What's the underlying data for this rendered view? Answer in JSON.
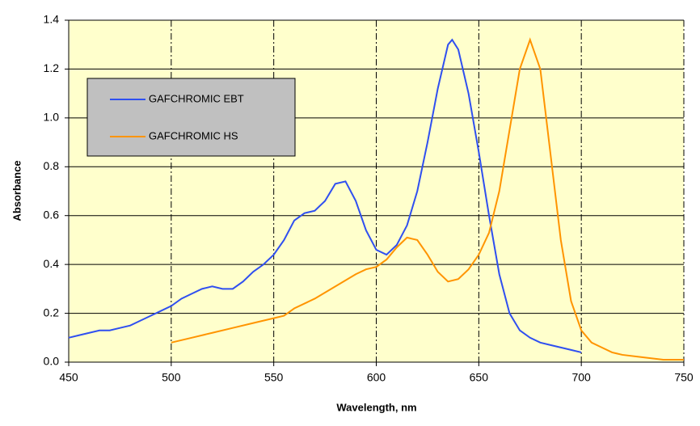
{
  "chart_data": {
    "type": "line",
    "x_label": "Wavelength, nm",
    "y_label": "Absorbance",
    "xlim": [
      450,
      750
    ],
    "xticks": [
      450,
      500,
      550,
      600,
      650,
      700,
      750
    ],
    "ylim": [
      0,
      1.4
    ],
    "yticks": [
      {
        "value": 0,
        "label": "0.0"
      },
      0.2,
      0.4,
      0.6,
      0.8,
      {
        "value": 1,
        "label": "1.0"
      },
      1.2,
      1.4
    ],
    "grid": true,
    "legend": "upper left",
    "series": [
      {
        "name": "GAFCHROMIC EBT",
        "color": "#2f4ff0",
        "x": [
          450,
          455,
          460,
          465,
          470,
          475,
          480,
          485,
          490,
          495,
          500,
          505,
          510,
          515,
          520,
          525,
          530,
          535,
          540,
          545,
          550,
          555,
          560,
          565,
          570,
          575,
          580,
          585,
          590,
          595,
          600,
          605,
          610,
          615,
          620,
          625,
          630,
          635,
          637,
          640,
          645,
          650,
          655,
          660,
          665,
          670,
          675,
          680,
          685,
          690,
          695,
          700
        ],
        "values": [
          0.1,
          0.11,
          0.12,
          0.13,
          0.13,
          0.14,
          0.15,
          0.17,
          0.19,
          0.21,
          0.23,
          0.26,
          0.28,
          0.3,
          0.31,
          0.3,
          0.3,
          0.33,
          0.37,
          0.4,
          0.44,
          0.5,
          0.58,
          0.61,
          0.62,
          0.66,
          0.73,
          0.74,
          0.66,
          0.54,
          0.46,
          0.44,
          0.48,
          0.56,
          0.7,
          0.9,
          1.12,
          1.3,
          1.32,
          1.28,
          1.1,
          0.86,
          0.6,
          0.36,
          0.2,
          0.13,
          0.1,
          0.08,
          0.07,
          0.06,
          0.05,
          0.04
        ]
      },
      {
        "name": "GAFCHROMIC HS",
        "color": "#ff9400",
        "x": [
          500,
          510,
          520,
          530,
          540,
          550,
          555,
          560,
          570,
          580,
          590,
          595,
          600,
          605,
          610,
          615,
          620,
          625,
          630,
          635,
          640,
          645,
          650,
          655,
          660,
          665,
          670,
          675,
          680,
          685,
          690,
          695,
          700,
          705,
          710,
          715,
          720,
          730,
          740,
          750
        ],
        "values": [
          0.08,
          0.1,
          0.12,
          0.14,
          0.16,
          0.18,
          0.19,
          0.22,
          0.26,
          0.31,
          0.36,
          0.38,
          0.39,
          0.42,
          0.47,
          0.51,
          0.5,
          0.44,
          0.37,
          0.33,
          0.34,
          0.38,
          0.44,
          0.53,
          0.7,
          0.95,
          1.2,
          1.32,
          1.2,
          0.85,
          0.5,
          0.25,
          0.13,
          0.08,
          0.06,
          0.04,
          0.03,
          0.02,
          0.01,
          0.01
        ]
      }
    ]
  }
}
